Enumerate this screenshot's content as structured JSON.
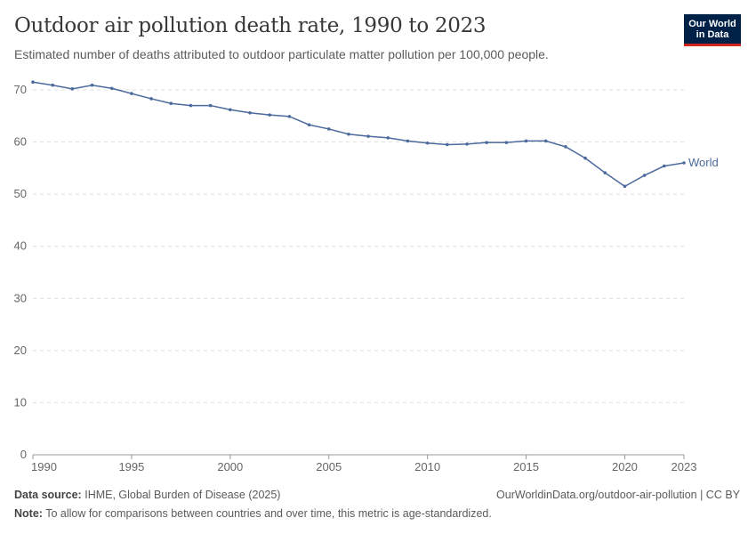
{
  "title": "Outdoor air pollution death rate, 1990 to 2023",
  "subtitle": "Estimated number of deaths attributed to outdoor particulate matter pollution per 100,000 people.",
  "logo": {
    "line1": "Our World",
    "line2": "in Data"
  },
  "footer": {
    "source_label": "Data source:",
    "source": "IHME, Global Burden of Disease (2025)",
    "url": "OurWorldinData.org/outdoor-air-pollution | CC BY",
    "note_label": "Note:",
    "note": "To allow for comparisons between countries and over time, this metric is age-standardized."
  },
  "chart_data": {
    "type": "line",
    "title": "Outdoor air pollution death rate, 1990 to 2023",
    "xlim": [
      1990,
      2023
    ],
    "ylim": [
      0,
      70
    ],
    "grid": true,
    "x_ticks": [
      "1990",
      "1995",
      "2000",
      "2005",
      "2010",
      "2015",
      "2020",
      "2023"
    ],
    "y_ticks": [
      "0",
      "10",
      "20",
      "30",
      "40",
      "50",
      "60",
      "70"
    ],
    "x": [
      1990,
      1991,
      1992,
      1993,
      1994,
      1995,
      1996,
      1997,
      1998,
      1999,
      2000,
      2001,
      2002,
      2003,
      2004,
      2005,
      2006,
      2007,
      2008,
      2009,
      2010,
      2011,
      2012,
      2013,
      2014,
      2015,
      2016,
      2017,
      2018,
      2019,
      2020,
      2021,
      2022,
      2023
    ],
    "series": [
      {
        "name": "World",
        "color": "#4c6a9c",
        "values": [
          71.5,
          70.9,
          70.2,
          70.9,
          70.3,
          69.3,
          68.3,
          67.4,
          67.0,
          67.0,
          66.2,
          65.6,
          65.2,
          64.9,
          63.3,
          62.5,
          61.5,
          61.1,
          60.8,
          60.2,
          59.8,
          59.5,
          59.6,
          59.9,
          59.9,
          60.2,
          60.2,
          59.1,
          56.9,
          54.1,
          51.5,
          53.6,
          55.4,
          56.0
        ]
      }
    ]
  }
}
